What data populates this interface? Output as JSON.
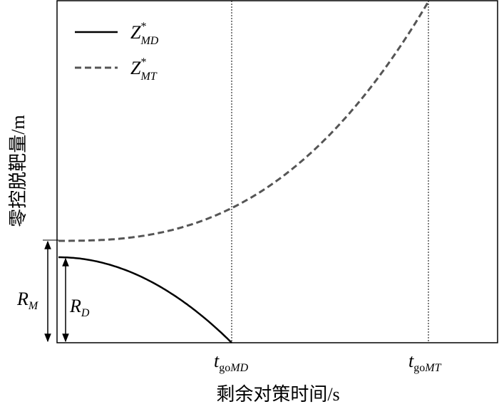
{
  "legend": [
    {
      "symbol": "Z",
      "sup": "*",
      "sub": "MD"
    },
    {
      "symbol": "Z",
      "sup": "*",
      "sub": "MT"
    }
  ],
  "annotations": {
    "r_m": {
      "symbol": "R",
      "sub": "M"
    },
    "r_d": {
      "symbol": "R",
      "sub": "D"
    },
    "t_go_md": {
      "symbol": "t",
      "sub_roman": "go",
      "sub_italic": "MD"
    },
    "t_go_mt": {
      "symbol": "t",
      "sub_roman": "go",
      "sub_italic": "MT"
    }
  },
  "axes": {
    "x_label": "剩余对策时间/s",
    "y_label": "零控脱靶量/m"
  }
}
